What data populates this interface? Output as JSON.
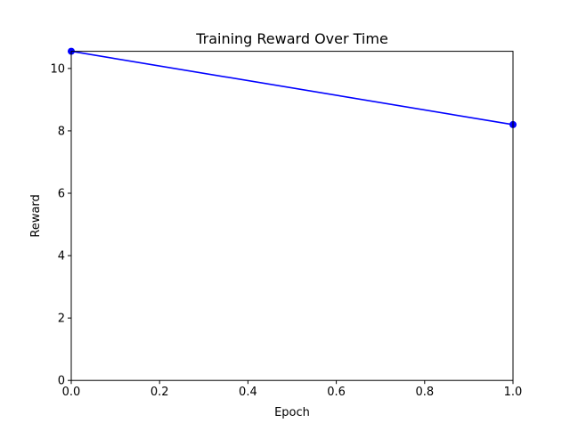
{
  "chart_data": {
    "type": "line",
    "title": "Training Reward Over Time",
    "xlabel": "Epoch",
    "ylabel": "Reward",
    "xlim": [
      0,
      1
    ],
    "ylim": [
      0,
      10.55
    ],
    "xticks": [
      0.0,
      0.2,
      0.4,
      0.6,
      0.8,
      1.0
    ],
    "xtick_labels": [
      "0.0",
      "0.2",
      "0.4",
      "0.6",
      "0.8",
      "1.0"
    ],
    "yticks": [
      0,
      2,
      4,
      6,
      8,
      10
    ],
    "ytick_labels": [
      "0",
      "2",
      "4",
      "6",
      "8",
      "10"
    ],
    "grid": false,
    "legend": "none",
    "series": [
      {
        "x": [
          0,
          1
        ],
        "y": [
          10.55,
          8.2
        ],
        "color": "#0000ff",
        "marker": "circle"
      }
    ]
  }
}
